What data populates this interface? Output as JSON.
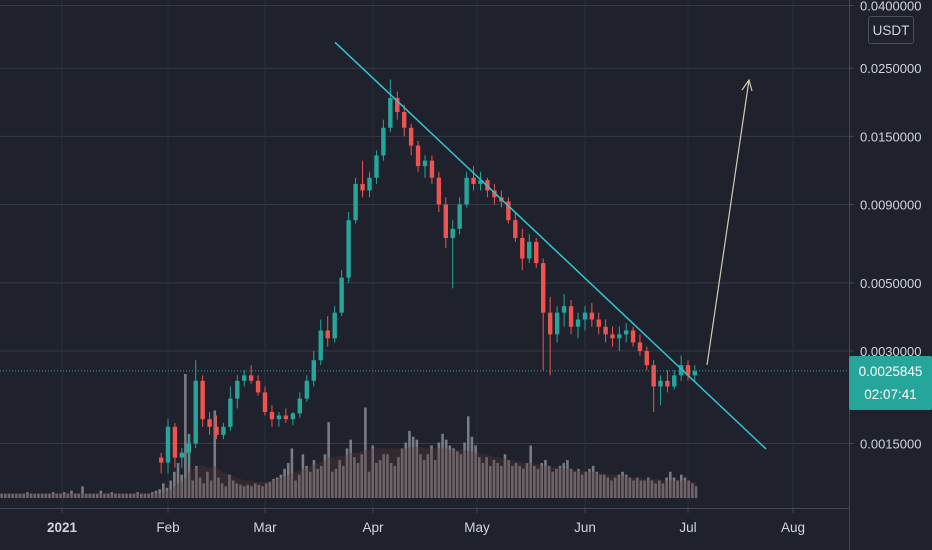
{
  "chart_data": {
    "type": "candlestick",
    "pair_currency": "USDT",
    "scale": "log",
    "grid": true,
    "colors": {
      "background": "#1f222d",
      "up": "#26a69a",
      "down": "#ef5350",
      "volume": "#8a8c93",
      "trendline": "#2fc6d0",
      "arrow": "#d8c9b5",
      "grid": "#363a45",
      "axis_text": "#d1d4dc"
    },
    "y_ticks": [
      "0.0400000",
      "0.0250000",
      "0.0150000",
      "0.0090000",
      "0.0050000",
      "0.0030000",
      "0.0015000"
    ],
    "x_ticks": [
      "2021",
      "Feb",
      "Mar",
      "Apr",
      "May",
      "Jun",
      "Jul",
      "Aug"
    ],
    "last_price": "0.0025845",
    "countdown": "02:07:41",
    "trend_points": [
      {
        "label": "Apr",
        "y": 0.0232
      },
      {
        "label": "May",
        "y": 0.0108
      },
      {
        "label": "Jun",
        "y": 0.005
      },
      {
        "label": "Jul",
        "y": 0.0025
      }
    ],
    "candles": [
      {
        "x": "Jan 30",
        "o": 0.00135,
        "h": 0.0014,
        "l": 0.0012,
        "c": 0.0013
      },
      {
        "x": "Feb 1",
        "o": 0.0013,
        "h": 0.0018,
        "l": 0.0012,
        "c": 0.0017
      },
      {
        "x": "Feb 3",
        "o": 0.0017,
        "h": 0.00175,
        "l": 0.00125,
        "c": 0.00135
      },
      {
        "x": "Feb 5",
        "o": 0.00135,
        "h": 0.00145,
        "l": 0.00125,
        "c": 0.0014
      },
      {
        "x": "Feb 7",
        "o": 0.0014,
        "h": 0.0016,
        "l": 0.0013,
        "c": 0.0015
      },
      {
        "x": "Feb 9",
        "o": 0.0015,
        "h": 0.0028,
        "l": 0.00145,
        "c": 0.0024
      },
      {
        "x": "Feb 11",
        "o": 0.0024,
        "h": 0.0025,
        "l": 0.0017,
        "c": 0.0018
      },
      {
        "x": "Feb 13",
        "o": 0.0018,
        "h": 0.0019,
        "l": 0.0016,
        "c": 0.0017
      },
      {
        "x": "Feb 15",
        "o": 0.0017,
        "h": 0.00185,
        "l": 0.00155,
        "c": 0.0016
      },
      {
        "x": "Feb 17",
        "o": 0.0016,
        "h": 0.00175,
        "l": 0.00155,
        "c": 0.0017
      },
      {
        "x": "Feb 19",
        "o": 0.0017,
        "h": 0.0023,
        "l": 0.00165,
        "c": 0.0021
      },
      {
        "x": "Feb 21",
        "o": 0.0021,
        "h": 0.0025,
        "l": 0.00195,
        "c": 0.0024
      },
      {
        "x": "Feb 23",
        "o": 0.0024,
        "h": 0.0026,
        "l": 0.0023,
        "c": 0.0025
      },
      {
        "x": "Feb 25",
        "o": 0.0025,
        "h": 0.0027,
        "l": 0.00235,
        "c": 0.0024
      },
      {
        "x": "Feb 27",
        "o": 0.0024,
        "h": 0.0025,
        "l": 0.00215,
        "c": 0.0022
      },
      {
        "x": "Mar 1",
        "o": 0.0022,
        "h": 0.0023,
        "l": 0.00185,
        "c": 0.0019
      },
      {
        "x": "Mar 3",
        "o": 0.0019,
        "h": 0.002,
        "l": 0.0017,
        "c": 0.0018
      },
      {
        "x": "Mar 5",
        "o": 0.0018,
        "h": 0.0019,
        "l": 0.0017,
        "c": 0.00185
      },
      {
        "x": "Mar 7",
        "o": 0.00185,
        "h": 0.00195,
        "l": 0.00175,
        "c": 0.0018
      },
      {
        "x": "Mar 9",
        "o": 0.0018,
        "h": 0.0019,
        "l": 0.00172,
        "c": 0.00188
      },
      {
        "x": "Mar 11",
        "o": 0.00188,
        "h": 0.0022,
        "l": 0.00182,
        "c": 0.0021
      },
      {
        "x": "Mar 13",
        "o": 0.0021,
        "h": 0.0025,
        "l": 0.00205,
        "c": 0.0024
      },
      {
        "x": "Mar 15",
        "o": 0.0024,
        "h": 0.003,
        "l": 0.0023,
        "c": 0.0028
      },
      {
        "x": "Mar 17",
        "o": 0.0028,
        "h": 0.0038,
        "l": 0.0027,
        "c": 0.0035
      },
      {
        "x": "Mar 19",
        "o": 0.0035,
        "h": 0.0039,
        "l": 0.0031,
        "c": 0.0033
      },
      {
        "x": "Mar 21",
        "o": 0.0033,
        "h": 0.0042,
        "l": 0.0032,
        "c": 0.004
      },
      {
        "x": "Mar 23",
        "o": 0.004,
        "h": 0.0055,
        "l": 0.0039,
        "c": 0.0052
      },
      {
        "x": "Mar 25",
        "o": 0.0052,
        "h": 0.0085,
        "l": 0.005,
        "c": 0.008
      },
      {
        "x": "Mar 27",
        "o": 0.008,
        "h": 0.011,
        "l": 0.0078,
        "c": 0.0105
      },
      {
        "x": "Mar 29",
        "o": 0.0105,
        "h": 0.0125,
        "l": 0.0095,
        "c": 0.01
      },
      {
        "x": "Mar 31",
        "o": 0.01,
        "h": 0.0115,
        "l": 0.0095,
        "c": 0.011
      },
      {
        "x": "Apr 2",
        "o": 0.011,
        "h": 0.0135,
        "l": 0.0105,
        "c": 0.013
      },
      {
        "x": "Apr 4",
        "o": 0.013,
        "h": 0.017,
        "l": 0.0125,
        "c": 0.016
      },
      {
        "x": "Apr 6",
        "o": 0.016,
        "h": 0.023,
        "l": 0.0155,
        "c": 0.02
      },
      {
        "x": "Apr 8",
        "o": 0.02,
        "h": 0.021,
        "l": 0.017,
        "c": 0.018
      },
      {
        "x": "Apr 10",
        "o": 0.018,
        "h": 0.019,
        "l": 0.015,
        "c": 0.016
      },
      {
        "x": "Apr 12",
        "o": 0.016,
        "h": 0.0165,
        "l": 0.013,
        "c": 0.014
      },
      {
        "x": "Apr 14",
        "o": 0.014,
        "h": 0.0145,
        "l": 0.0115,
        "c": 0.012
      },
      {
        "x": "Apr 16",
        "o": 0.012,
        "h": 0.013,
        "l": 0.011,
        "c": 0.0125
      },
      {
        "x": "Apr 18",
        "o": 0.0125,
        "h": 0.013,
        "l": 0.0105,
        "c": 0.011
      },
      {
        "x": "Apr 20",
        "o": 0.011,
        "h": 0.0115,
        "l": 0.0085,
        "c": 0.009
      },
      {
        "x": "Apr 22",
        "o": 0.009,
        "h": 0.0095,
        "l": 0.0065,
        "c": 0.007
      },
      {
        "x": "Apr 24",
        "o": 0.007,
        "h": 0.008,
        "l": 0.0048,
        "c": 0.0075
      },
      {
        "x": "Apr 26",
        "o": 0.0075,
        "h": 0.0095,
        "l": 0.0072,
        "c": 0.009
      },
      {
        "x": "Apr 28",
        "o": 0.009,
        "h": 0.0115,
        "l": 0.0088,
        "c": 0.011
      },
      {
        "x": "Apr 30",
        "o": 0.011,
        "h": 0.012,
        "l": 0.01,
        "c": 0.0105
      },
      {
        "x": "May 2",
        "o": 0.0105,
        "h": 0.0115,
        "l": 0.01,
        "c": 0.0108
      },
      {
        "x": "May 4",
        "o": 0.0108,
        "h": 0.011,
        "l": 0.0095,
        "c": 0.01
      },
      {
        "x": "May 6",
        "o": 0.01,
        "h": 0.0105,
        "l": 0.009,
        "c": 0.0095
      },
      {
        "x": "May 8",
        "o": 0.0095,
        "h": 0.01,
        "l": 0.0088,
        "c": 0.0092
      },
      {
        "x": "May 10",
        "o": 0.0092,
        "h": 0.0095,
        "l": 0.0078,
        "c": 0.008
      },
      {
        "x": "May 12",
        "o": 0.008,
        "h": 0.0085,
        "l": 0.0068,
        "c": 0.007
      },
      {
        "x": "May 14",
        "o": 0.007,
        "h": 0.0075,
        "l": 0.0055,
        "c": 0.006
      },
      {
        "x": "May 16",
        "o": 0.006,
        "h": 0.0072,
        "l": 0.0058,
        "c": 0.0068
      },
      {
        "x": "May 18",
        "o": 0.0068,
        "h": 0.007,
        "l": 0.0056,
        "c": 0.0058
      },
      {
        "x": "May 20",
        "o": 0.0058,
        "h": 0.006,
        "l": 0.0026,
        "c": 0.004
      },
      {
        "x": "May 22",
        "o": 0.004,
        "h": 0.0045,
        "l": 0.0025,
        "c": 0.0034
      },
      {
        "x": "May 24",
        "o": 0.0034,
        "h": 0.0042,
        "l": 0.0032,
        "c": 0.004
      },
      {
        "x": "May 26",
        "o": 0.004,
        "h": 0.0046,
        "l": 0.0036,
        "c": 0.0042
      },
      {
        "x": "May 28",
        "o": 0.0042,
        "h": 0.0044,
        "l": 0.0034,
        "c": 0.0036
      },
      {
        "x": "May 30",
        "o": 0.0036,
        "h": 0.004,
        "l": 0.0033,
        "c": 0.0038
      },
      {
        "x": "Jun 1",
        "o": 0.0038,
        "h": 0.0042,
        "l": 0.0035,
        "c": 0.004
      },
      {
        "x": "Jun 3",
        "o": 0.004,
        "h": 0.0043,
        "l": 0.0036,
        "c": 0.0038
      },
      {
        "x": "Jun 5",
        "o": 0.0038,
        "h": 0.004,
        "l": 0.0034,
        "c": 0.0036
      },
      {
        "x": "Jun 7",
        "o": 0.0036,
        "h": 0.0038,
        "l": 0.0032,
        "c": 0.0034
      },
      {
        "x": "Jun 9",
        "o": 0.0034,
        "h": 0.0036,
        "l": 0.0031,
        "c": 0.0033
      },
      {
        "x": "Jun 11",
        "o": 0.0033,
        "h": 0.0036,
        "l": 0.003,
        "c": 0.0034
      },
      {
        "x": "Jun 13",
        "o": 0.0034,
        "h": 0.0037,
        "l": 0.0032,
        "c": 0.0035
      },
      {
        "x": "Jun 15",
        "o": 0.0035,
        "h": 0.0036,
        "l": 0.0031,
        "c": 0.0032
      },
      {
        "x": "Jun 17",
        "o": 0.0032,
        "h": 0.0034,
        "l": 0.0029,
        "c": 0.003
      },
      {
        "x": "Jun 19",
        "o": 0.003,
        "h": 0.0031,
        "l": 0.0026,
        "c": 0.0027
      },
      {
        "x": "Jun 21",
        "o": 0.0027,
        "h": 0.0028,
        "l": 0.0019,
        "c": 0.0023
      },
      {
        "x": "Jun 23",
        "o": 0.0023,
        "h": 0.0025,
        "l": 0.002,
        "c": 0.0024
      },
      {
        "x": "Jun 25",
        "o": 0.0024,
        "h": 0.0026,
        "l": 0.0022,
        "c": 0.0023
      },
      {
        "x": "Jun 27",
        "o": 0.0023,
        "h": 0.0026,
        "l": 0.00225,
        "c": 0.0025
      },
      {
        "x": "Jun 29",
        "o": 0.0025,
        "h": 0.0029,
        "l": 0.0024,
        "c": 0.0027
      },
      {
        "x": "Jul 1",
        "o": 0.0027,
        "h": 0.0028,
        "l": 0.0024,
        "c": 0.0025
      },
      {
        "x": "Jul 3",
        "o": 0.0025,
        "h": 0.0027,
        "l": 0.0024,
        "c": 0.002585
      }
    ],
    "volume": [
      3,
      3,
      3,
      3,
      3,
      3,
      3,
      4,
      3,
      3,
      3,
      3,
      3,
      3,
      4,
      3,
      3,
      4,
      3,
      5,
      3,
      3,
      8,
      3,
      3,
      3,
      3,
      5,
      3,
      3,
      4,
      3,
      3,
      3,
      3,
      3,
      3,
      4,
      3,
      3,
      3,
      4,
      5,
      6,
      10,
      7,
      12,
      18,
      24,
      16,
      85,
      44,
      12,
      22,
      14,
      10,
      18,
      12,
      60,
      14,
      10,
      8,
      16,
      12,
      10,
      9,
      8,
      9,
      8,
      10,
      9,
      8,
      10,
      11,
      13,
      14,
      16,
      20,
      24,
      34,
      12,
      16,
      30,
      22,
      18,
      26,
      20,
      22,
      30,
      52,
      18,
      20,
      26,
      22,
      34,
      40,
      28,
      24,
      30,
      62,
      18,
      36,
      24,
      26,
      30,
      30,
      24,
      22,
      28,
      34,
      38,
      46,
      42,
      40,
      30,
      26,
      30,
      36,
      26,
      38,
      44,
      40,
      36,
      34,
      32,
      30,
      38,
      56,
      42,
      36,
      28,
      24,
      28,
      22,
      26,
      24,
      22,
      30,
      26,
      22,
      24,
      22,
      20,
      24,
      36,
      22,
      20,
      24,
      26,
      22,
      18,
      20,
      22,
      24,
      26,
      20,
      18,
      20,
      16,
      18,
      20,
      22,
      18,
      16,
      16,
      14,
      12,
      14,
      16,
      18,
      16,
      14,
      12,
      14,
      12,
      12,
      14,
      12,
      10,
      12,
      10,
      14,
      18,
      14,
      12,
      16,
      14,
      12,
      10,
      8
    ],
    "volume_ma": [
      3,
      3,
      3,
      3,
      3,
      3,
      3,
      3,
      3,
      3,
      3,
      3,
      3,
      3,
      3,
      3,
      3,
      3,
      3,
      3,
      3,
      3,
      3,
      3,
      3,
      3,
      3,
      3,
      3,
      3,
      3,
      3,
      3,
      3,
      3,
      3,
      3,
      3,
      3,
      3,
      3,
      3,
      3,
      3,
      4,
      5,
      6,
      8,
      10,
      11,
      14,
      18,
      20,
      21,
      22,
      22,
      21,
      21,
      22,
      20,
      18,
      17,
      16,
      15,
      14,
      13,
      12,
      12,
      12,
      11,
      11,
      11,
      11,
      12,
      12,
      13,
      14,
      15,
      16,
      17,
      18,
      19,
      20,
      21,
      22,
      23,
      24,
      25,
      26,
      28,
      28,
      28,
      29,
      29,
      30,
      31,
      31,
      31,
      32,
      33,
      33,
      34,
      34,
      34,
      34,
      34,
      34,
      34,
      34,
      34,
      34,
      35,
      35,
      35,
      35,
      34,
      34,
      34,
      34,
      34,
      34,
      34,
      33,
      33,
      33,
      33,
      33,
      32,
      32,
      31,
      31,
      30,
      30,
      29,
      28,
      28,
      27,
      27,
      26,
      26,
      25,
      25,
      24,
      24,
      24,
      23,
      23,
      22,
      22,
      22,
      21,
      21,
      21,
      20,
      20,
      20,
      19,
      19,
      19,
      18,
      18,
      18,
      17,
      17,
      17,
      16,
      16,
      16,
      15,
      15,
      15,
      14,
      14,
      14,
      14,
      13,
      13,
      13,
      13,
      13,
      12,
      12,
      12,
      12,
      12,
      12,
      12,
      12,
      11,
      11
    ]
  }
}
